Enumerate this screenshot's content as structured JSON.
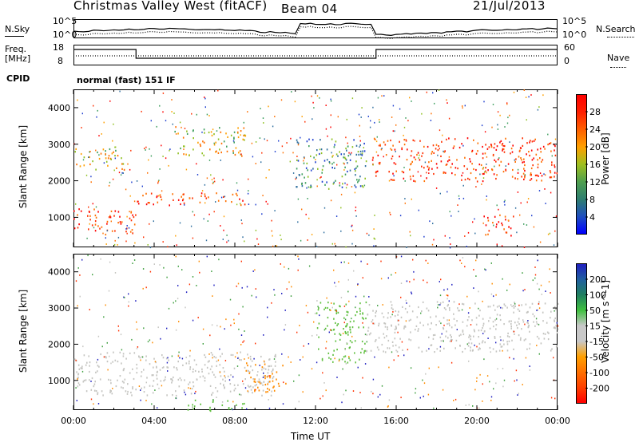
{
  "header": {
    "title": "Christmas Valley West (fitACF)",
    "beam": "Beam 04",
    "date": "21/Jul/2013"
  },
  "aux": {
    "nsky_label": "N.Sky",
    "nsky_tick_top": "10^5",
    "nsky_tick_bottom": "10^0",
    "nsearch_tick_top": "10^5",
    "nsearch_tick_bottom": "10^0",
    "nsearch_label": "N.Search",
    "freq_label_line1": "Freq.",
    "freq_label_line2": "[MHz]",
    "freq_tick_top": "18",
    "freq_tick_bottom": "8",
    "nave_tick_top": "60",
    "nave_tick_bottom": "0",
    "nave_label": "Nave",
    "cpid_label": "CPID",
    "cpid_value": "normal (fast) 151 IF"
  },
  "chart_data": [
    {
      "type": "heatmap",
      "title": "",
      "panel": "power",
      "xlabel": "",
      "ylabel": "Slant Range [km]",
      "xlim": [
        "00:00",
        "00:00"
      ],
      "ylim": [
        180,
        4500
      ],
      "y_ticks": [
        1000,
        2000,
        3000,
        4000
      ],
      "colorbar": {
        "label": "Power [dB]",
        "ticks": [
          "28",
          "24",
          "20",
          "16",
          "12",
          "8",
          "4"
        ],
        "range": [
          0,
          32
        ],
        "colors": [
          "#0000ff",
          "#1f4fbf",
          "#2f7f6f",
          "#4f9f4f",
          "#a0c020",
          "#ffa000",
          "#ff6000",
          "#ff2000",
          "#ff0000"
        ]
      },
      "bands": [
        {
          "t0": 0.0,
          "t1": 3.2,
          "r0": 550,
          "r1": 1250,
          "level": "high"
        },
        {
          "t0": 3.0,
          "t1": 8.5,
          "r0": 1350,
          "r1": 1700,
          "level": "high"
        },
        {
          "t0": 5.0,
          "t1": 8.6,
          "r0": 2700,
          "r1": 3500,
          "level": "mid"
        },
        {
          "t0": 0.0,
          "t1": 2.5,
          "r0": 2300,
          "r1": 2900,
          "level": "mid"
        },
        {
          "t0": 11.0,
          "t1": 14.5,
          "r0": 1800,
          "r1": 3200,
          "level": "low"
        },
        {
          "t0": 14.8,
          "t1": 24.0,
          "r0": 2000,
          "r1": 3200,
          "level": "high"
        },
        {
          "t0": 20.3,
          "t1": 21.8,
          "r0": 400,
          "r1": 1100,
          "level": "high"
        }
      ]
    },
    {
      "type": "heatmap",
      "title": "",
      "panel": "velocity",
      "xlabel": "Time UT",
      "ylabel": "Slant Range [km]",
      "x_ticks": [
        "00:00",
        "04:00",
        "08:00",
        "12:00",
        "16:00",
        "20:00",
        "00:00"
      ],
      "ylim": [
        180,
        4500
      ],
      "y_ticks": [
        1000,
        2000,
        3000,
        4000
      ],
      "colorbar": {
        "label": "Velocity [m s^-1]",
        "ticks": [
          "200",
          "100",
          "50",
          "15",
          "-15",
          "-50",
          "-100",
          "-200"
        ],
        "range": [
          -250,
          250
        ],
        "colors": [
          "#ff0000",
          "#ff4000",
          "#ff7000",
          "#ffa000",
          "#c8c8c8",
          "#c8c8c8",
          "#40c040",
          "#208060",
          "#2060a0",
          "#2020c0"
        ]
      },
      "bands": [
        {
          "t0": 0.0,
          "t1": 10.0,
          "r0": 600,
          "r1": 1800,
          "level": "ground"
        },
        {
          "t0": 8.5,
          "t1": 10.5,
          "r0": 700,
          "r1": 1500,
          "level": "neg"
        },
        {
          "t0": 5.5,
          "t1": 8.5,
          "r0": 180,
          "r1": 500,
          "level": "pos"
        },
        {
          "t0": 12.0,
          "t1": 14.5,
          "r0": 1500,
          "r1": 3200,
          "level": "pos"
        },
        {
          "t0": 14.5,
          "t1": 24.0,
          "r0": 1800,
          "r1": 3200,
          "level": "ground"
        }
      ]
    }
  ]
}
